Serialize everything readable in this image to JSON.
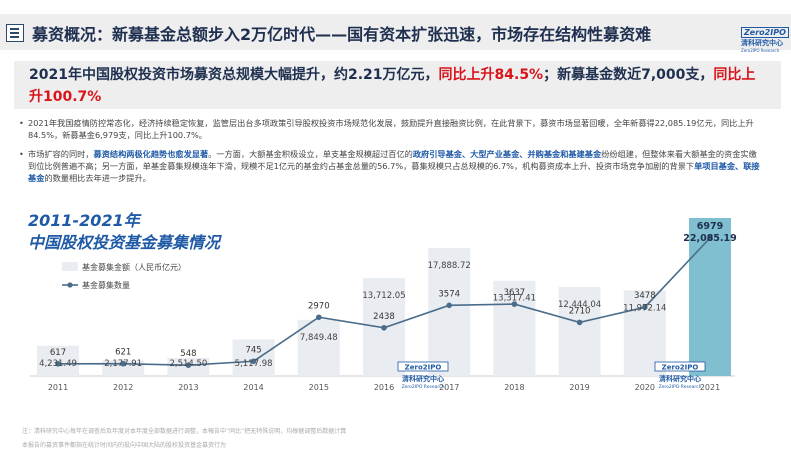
{
  "header": {
    "title": "募资概况：新募基金总额步入2万亿时代——国有资本扩张迅速，市场存在结构性募资难"
  },
  "logo": {
    "mark": "Zero2IPO",
    "cn": "清科研究中心",
    "en": "Zero2IPO Research"
  },
  "headline": {
    "part1": "2021年中国股权投资市场募资总规模大幅提升，约2.21万亿元，",
    "part2": "同比上升84.5%",
    "part3": "；新募基金数近7,000支，",
    "part4": "同比上升100.7%"
  },
  "bullets": [
    {
      "text": "2021年我国疫情防控常态化，经济持续稳定恢复，监管层出台多项政策引导股权投资市场规范化发展，鼓励提升直接融资比例，在此背景下，募资市场显著回暖，全年新募得22,085.19亿元，同比上升84.5%，新募基金6,979支，同比上升100.7%。"
    },
    {
      "a": "市场扩容的同时，",
      "b": "募资结构两极化趋势也愈发显著",
      "c": "。一方面，大额基金积极设立，单支基金规模超过百亿的",
      "d": "政府引导基金、大型产业基金、并购基金和基建基金",
      "e": "纷纷组建，但整体来看大额基金的资金实缴到位比例普遍不高；另一方面，单基金募集规模连年下滑，规模不足1亿元的基金约占基金总量的56.7%，募集规模只占总规模的6.7%，机构募资成本上升、投资市场竞争加剧的背景下",
      "f": "单项目基金、联接基金",
      "g": "的数量相比去年进一步提升。"
    }
  ],
  "chart_title": {
    "line1": "2011-2021年",
    "line2": "中国股权投资基金募集情况"
  },
  "chart_data": {
    "type": "bar",
    "categories": [
      "2011",
      "2012",
      "2013",
      "2014",
      "2015",
      "2016",
      "2017",
      "2018",
      "2019",
      "2020",
      "2021"
    ],
    "series": [
      {
        "name": "基金募集金额（人民币亿元）",
        "type": "bar",
        "values": [
          4231.49,
          2177.91,
          2514.5,
          5117.98,
          7849.48,
          13712.05,
          17888.72,
          13317.41,
          12444.04,
          11972.14,
          22085.19
        ],
        "labels": [
          "4,231.49",
          "2,177.91",
          "2,514.50",
          "5,117.98",
          "7,849.48",
          "13,712.05",
          "17,888.72",
          "13,317.41",
          "12,444.04",
          "11,972.14",
          "22,085.19"
        ]
      },
      {
        "name": "基金募集数量",
        "type": "line",
        "values": [
          617,
          621,
          548,
          745,
          2970,
          2438,
          3574,
          3637,
          2710,
          3478,
          6979
        ],
        "labels": [
          "617",
          "621",
          "548",
          "745",
          "2970",
          "2438",
          "3574",
          "3637",
          "2710",
          "3478",
          "6979"
        ]
      }
    ],
    "colors": {
      "bar": "#e9ecf0",
      "bar_highlight": "#7fbfcf",
      "line": "#4a6d8c"
    },
    "legend_placement": "top-left"
  },
  "watermark": {
    "mark": "Zero2IPO",
    "cn": "清科研究中心",
    "en": "Zero2IPO Research"
  },
  "footnotes": [
    "注：清科研究中心每年在调查后及年度对本年度全部数据进行调整，本報告中“同比”把无特殊说明，均根据调整后数据计算",
    "本报告的募资事件都指在统计时间内的投向中国大陆的股权投资基金募资行为"
  ]
}
